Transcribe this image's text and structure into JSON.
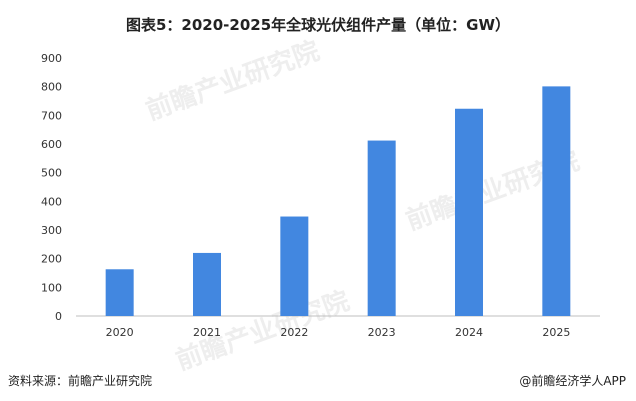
{
  "chart_data": {
    "type": "bar",
    "title": "图表5：2020-2025年全球光伏组件产量（单位：GW）",
    "categories": [
      "2020",
      "2021",
      "2022",
      "2023",
      "2024",
      "2025"
    ],
    "values": [
      163,
      220,
      347,
      612,
      723,
      801
    ],
    "ylim": [
      0,
      900
    ],
    "yticks": [
      0,
      100,
      200,
      300,
      400,
      500,
      600,
      700,
      800,
      900
    ],
    "grid": false,
    "bar_color": "#4287e0"
  },
  "footer": {
    "source": "资料来源：前瞻产业研究院",
    "credit": "@前瞻经济学人APP"
  },
  "watermark": {
    "text": "前瞻产业研究院"
  }
}
